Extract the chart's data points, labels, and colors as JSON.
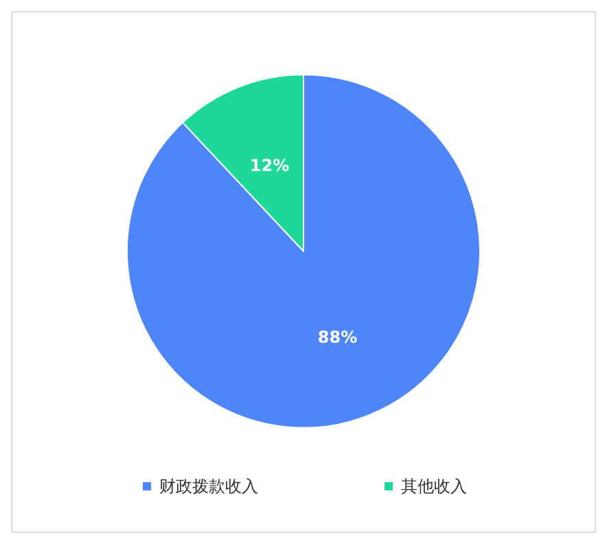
{
  "chart_data": {
    "type": "pie",
    "categories": [
      "财政拨款收入",
      "其他收入"
    ],
    "values": [
      88,
      12
    ],
    "colors": [
      "#4f86f7",
      "#1ed89a"
    ],
    "value_labels": [
      "88%",
      "12%"
    ],
    "legend": "bottom"
  }
}
